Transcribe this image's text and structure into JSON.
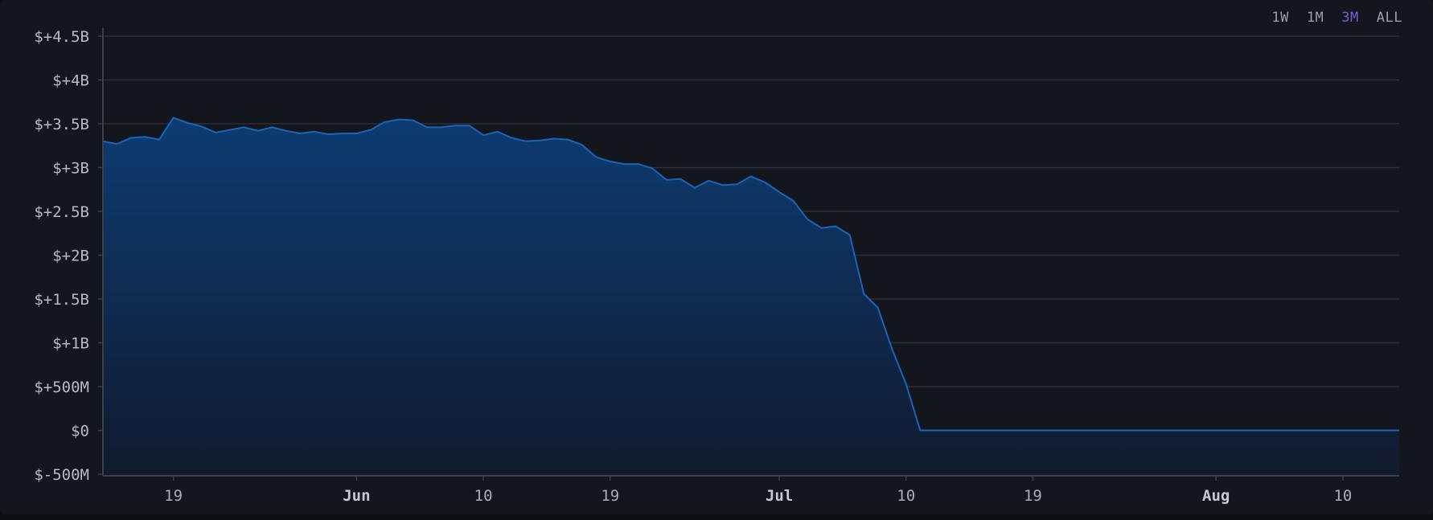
{
  "range_selector": {
    "options": [
      "1W",
      "1M",
      "3M",
      "ALL"
    ],
    "active": "3M"
  },
  "colors": {
    "line": "#1a64b8",
    "fill_top": "#0d3c72",
    "fill_bottom": "#111a2e",
    "grid": "#2b2f3a",
    "axis": "#3a3f4c",
    "active_tab": "#7c5cd6"
  },
  "chart_data": {
    "type": "area",
    "title": "",
    "xlabel": "",
    "ylabel": "",
    "ylim": [
      -500000000,
      4500000000
    ],
    "grid": true,
    "y_ticks": [
      {
        "value": 4500000000,
        "label": "$+4.5B"
      },
      {
        "value": 4000000000,
        "label": "$+4B"
      },
      {
        "value": 3500000000,
        "label": "$+3.5B"
      },
      {
        "value": 3000000000,
        "label": "$+3B"
      },
      {
        "value": 2500000000,
        "label": "$+2.5B"
      },
      {
        "value": 2000000000,
        "label": "$+2B"
      },
      {
        "value": 1500000000,
        "label": "$+1.5B"
      },
      {
        "value": 1000000000,
        "label": "$+1B"
      },
      {
        "value": 500000000,
        "label": "$+500M"
      },
      {
        "value": 0,
        "label": "$0"
      },
      {
        "value": -500000000,
        "label": "$-500M"
      }
    ],
    "x_range": [
      "2024-05-14",
      "2024-08-14"
    ],
    "x_ticks": [
      {
        "date": "2024-05-19",
        "label": "19",
        "month": false
      },
      {
        "date": "2024-06-01",
        "label": "Jun",
        "month": true
      },
      {
        "date": "2024-06-10",
        "label": "10",
        "month": false
      },
      {
        "date": "2024-06-19",
        "label": "19",
        "month": false
      },
      {
        "date": "2024-07-01",
        "label": "Jul",
        "month": true
      },
      {
        "date": "2024-07-10",
        "label": "10",
        "month": false
      },
      {
        "date": "2024-07-19",
        "label": "19",
        "month": false
      },
      {
        "date": "2024-08-01",
        "label": "Aug",
        "month": true
      },
      {
        "date": "2024-08-10",
        "label": "10",
        "month": false
      }
    ],
    "series": [
      {
        "points": [
          [
            "2024-05-14",
            3220000000.0
          ],
          [
            "2024-05-14",
            3300000000.0
          ],
          [
            "2024-05-15",
            3270000000.0
          ],
          [
            "2024-05-16",
            3340000000.0
          ],
          [
            "2024-05-17",
            3350000000.0
          ],
          [
            "2024-05-18",
            3320000000.0
          ],
          [
            "2024-05-19",
            3570000000.0
          ],
          [
            "2024-05-20",
            3510000000.0
          ],
          [
            "2024-05-21",
            3470000000.0
          ],
          [
            "2024-05-22",
            3400000000.0
          ],
          [
            "2024-05-23",
            3430000000.0
          ],
          [
            "2024-05-24",
            3460000000.0
          ],
          [
            "2024-05-25",
            3420000000.0
          ],
          [
            "2024-05-26",
            3460000000.0
          ],
          [
            "2024-05-27",
            3420000000.0
          ],
          [
            "2024-05-28",
            3390000000.0
          ],
          [
            "2024-05-29",
            3410000000.0
          ],
          [
            "2024-05-30",
            3380000000.0
          ],
          [
            "2024-05-31",
            3390000000.0
          ],
          [
            "2024-06-01",
            3390000000.0
          ],
          [
            "2024-06-02",
            3430000000.0
          ],
          [
            "2024-06-03",
            3520000000.0
          ],
          [
            "2024-06-04",
            3550000000.0
          ],
          [
            "2024-06-05",
            3540000000.0
          ],
          [
            "2024-06-06",
            3460000000.0
          ],
          [
            "2024-06-07",
            3460000000.0
          ],
          [
            "2024-06-08",
            3480000000.0
          ],
          [
            "2024-06-09",
            3480000000.0
          ],
          [
            "2024-06-10",
            3370000000.0
          ],
          [
            "2024-06-11",
            3410000000.0
          ],
          [
            "2024-06-12",
            3340000000.0
          ],
          [
            "2024-06-13",
            3300000000.0
          ],
          [
            "2024-06-14",
            3310000000.0
          ],
          [
            "2024-06-15",
            3330000000.0
          ],
          [
            "2024-06-16",
            3320000000.0
          ],
          [
            "2024-06-17",
            3260000000.0
          ],
          [
            "2024-06-18",
            3120000000.0
          ],
          [
            "2024-06-19",
            3070000000.0
          ],
          [
            "2024-06-20",
            3040000000.0
          ],
          [
            "2024-06-21",
            3040000000.0
          ],
          [
            "2024-06-22",
            2990000000.0
          ],
          [
            "2024-06-23",
            2860000000.0
          ],
          [
            "2024-06-24",
            2870000000.0
          ],
          [
            "2024-06-25",
            2770000000.0
          ],
          [
            "2024-06-26",
            2850000000.0
          ],
          [
            "2024-06-27",
            2800000000.0
          ],
          [
            "2024-06-28",
            2810000000.0
          ],
          [
            "2024-06-29",
            2900000000.0
          ],
          [
            "2024-06-30",
            2830000000.0
          ],
          [
            "2024-07-01",
            2720000000.0
          ],
          [
            "2024-07-02",
            2620000000.0
          ],
          [
            "2024-07-03",
            2410000000.0
          ],
          [
            "2024-07-04",
            2310000000.0
          ],
          [
            "2024-07-05",
            2330000000.0
          ],
          [
            "2024-07-06",
            2230000000.0
          ],
          [
            "2024-07-07",
            1560000000.0
          ],
          [
            "2024-07-08",
            1400000000.0
          ],
          [
            "2024-07-09",
            930000000.0
          ],
          [
            "2024-07-10",
            530000000.0
          ],
          [
            "2024-07-11",
            0.0
          ],
          [
            "2024-07-15",
            0.0
          ],
          [
            "2024-07-20",
            0.0
          ],
          [
            "2024-07-25",
            0.0
          ],
          [
            "2024-07-30",
            0.0
          ],
          [
            "2024-08-04",
            0.0
          ],
          [
            "2024-08-09",
            0.0
          ],
          [
            "2024-08-14",
            0.0
          ]
        ]
      }
    ]
  }
}
